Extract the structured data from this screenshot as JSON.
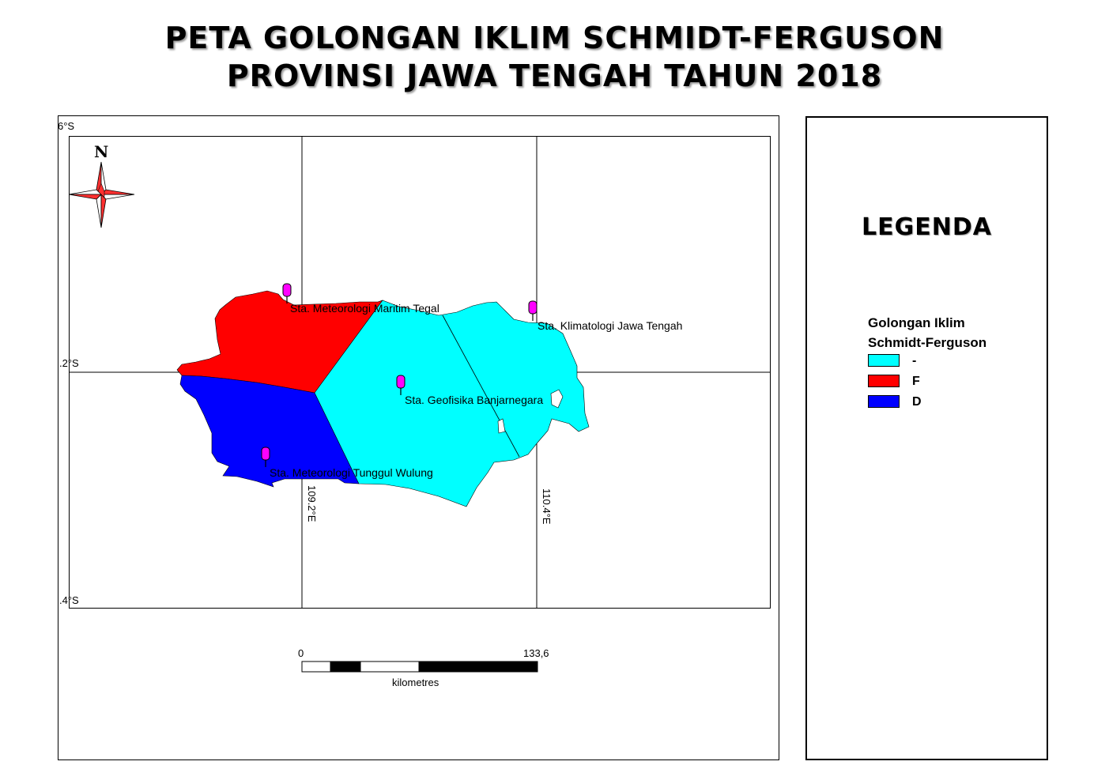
{
  "title": {
    "line1": "PETA GOLONGAN IKLIM SCHMIDT-FERGUSON",
    "line2": "PROVINSI JAWA TENGAH TAHUN 2018"
  },
  "graticule": {
    "lat_labels": [
      "6°S",
      ".2°S",
      ".4°S"
    ],
    "lon_labels": [
      "109.2°E",
      "110.4°E"
    ]
  },
  "north_arrow": {
    "letter": "N"
  },
  "stations": [
    {
      "name": "Sta. Meteorologi Maritim Tegal"
    },
    {
      "name": "Sta. Klimatologi Jawa Tengah"
    },
    {
      "name": "Sta. Geofisika Banjarnegara"
    },
    {
      "name": "Sta. Meteorologi Tunggul Wulung"
    }
  ],
  "regions": [
    {
      "class": "-",
      "color": "#00FFFF"
    },
    {
      "class": "F",
      "color": "#FF0000"
    },
    {
      "class": "D",
      "color": "#0000FF"
    }
  ],
  "legend": {
    "title": "LEGENDA",
    "heading_line1": "Golongan Iklim",
    "heading_line2": "Schmidt-Ferguson",
    "items": [
      {
        "label": "-",
        "color": "#00FFFF"
      },
      {
        "label": "F",
        "color": "#FF0000"
      },
      {
        "label": "D",
        "color": "#0000FF"
      }
    ]
  },
  "scale_bar": {
    "start": "0",
    "end": "133,6",
    "unit": "kilometres"
  },
  "marker_color": "#FF00FF"
}
